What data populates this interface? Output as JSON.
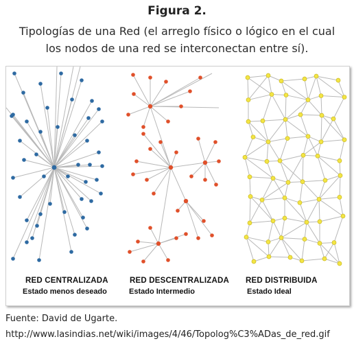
{
  "figure": {
    "title": "Figura 2.",
    "subtitle_line1": "Tipologías de una Red (el arreglo físico o lógico en el cual",
    "subtitle_line2": "los nodos de una red se interconectan entre sí)."
  },
  "networks": [
    {
      "name": "RED CENTRALIZADA",
      "subtitle": "Estado menos deseado",
      "node_color": "#2e6aa2"
    },
    {
      "name": "RED DESCENTRALIZADA",
      "subtitle": "Estado Intermedio",
      "node_color": "#e0502a"
    },
    {
      "name": "RED DISTRIBUIDA",
      "subtitle": "Estado Ideal",
      "node_color": "#f3e545"
    }
  ],
  "source": {
    "label": "Fuente: David de Ugarte.",
    "url": "http://www.lasindias.net/wiki/images/4/46/Topolog%C3%ADas_de_red.gif"
  }
}
